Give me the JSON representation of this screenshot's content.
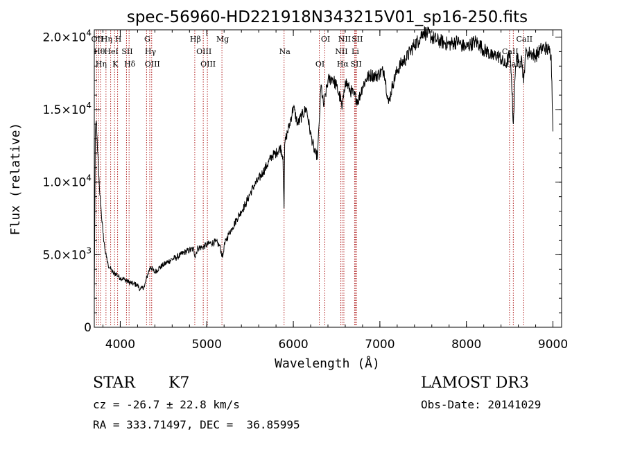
{
  "chart_data": {
    "type": "line",
    "title": "spec-56960-HD221918N343215V01_sp16-250.fits",
    "xlabel": "Wavelength (Å)",
    "ylabel": "Flux (relative)",
    "xlim": [
      3700,
      9100
    ],
    "ylim": [
      0,
      20500
    ],
    "x_ticks": [
      4000,
      5000,
      6000,
      7000,
      8000,
      9000
    ],
    "y_ticks": [
      {
        "value": 0,
        "mantissa": "0",
        "exp": ""
      },
      {
        "value": 5000,
        "mantissa": "5.0×10",
        "exp": "3"
      },
      {
        "value": 10000,
        "mantissa": "1.0×10",
        "exp": "4"
      },
      {
        "value": 15000,
        "mantissa": "1.5×10",
        "exp": "4"
      },
      {
        "value": 20000,
        "mantissa": "2.0×10",
        "exp": "4"
      }
    ],
    "series": [
      {
        "x": [
          3700,
          3712,
          3720,
          3730,
          3740,
          3750,
          3760,
          3780,
          3800,
          3820,
          3840,
          3860,
          3880,
          3900,
          3920,
          3950,
          3980,
          4000,
          4050,
          4100,
          4150,
          4200,
          4230,
          4250,
          4280,
          4300,
          4320,
          4350,
          4380,
          4400,
          4450,
          4500,
          4550,
          4600,
          4650,
          4700,
          4750,
          4800,
          4850,
          4861,
          4900,
          4950,
          5000,
          5050,
          5100,
          5150,
          5183,
          5200,
          5250,
          5300,
          5350,
          5400,
          5450,
          5500,
          5550,
          5600,
          5650,
          5700,
          5750,
          5800,
          5850,
          5880,
          5893,
          5900,
          5920,
          5950,
          6000,
          6050,
          6100,
          6150,
          6200,
          6250,
          6280,
          6300,
          6320,
          6350,
          6400,
          6450,
          6500,
          6550,
          6563,
          6580,
          6600,
          6650,
          6700,
          6750,
          6800,
          6850,
          6900,
          6950,
          7000,
          7050,
          7100,
          7150,
          7200,
          7250,
          7300,
          7350,
          7400,
          7450,
          7500,
          7550,
          7600,
          7650,
          7700,
          7750,
          7800,
          7850,
          7900,
          7950,
          8000,
          8050,
          8100,
          8150,
          8200,
          8250,
          8300,
          8350,
          8400,
          8450,
          8500,
          8520,
          8542,
          8560,
          8580,
          8600,
          8640,
          8662,
          8680,
          8700,
          8750,
          8800,
          8850,
          8900,
          8950,
          8980,
          9000
        ],
        "y": [
          2000,
          13500,
          14100,
          13300,
          12000,
          10500,
          9500,
          8000,
          6500,
          5500,
          4800,
          4300,
          4100,
          3900,
          3700,
          3700,
          3500,
          3400,
          3300,
          3100,
          3000,
          2900,
          2600,
          2700,
          2800,
          3300,
          3700,
          4200,
          3900,
          3800,
          4100,
          4300,
          4500,
          4700,
          4800,
          5000,
          5200,
          5300,
          5400,
          4900,
          5500,
          5500,
          5700,
          5800,
          5900,
          5600,
          4800,
          5600,
          6400,
          6900,
          7500,
          8000,
          8500,
          9200,
          9800,
          10200,
          10700,
          11200,
          11800,
          12000,
          12400,
          11800,
          8200,
          12600,
          13200,
          13800,
          15200,
          14000,
          14600,
          15100,
          13300,
          12000,
          11800,
          14200,
          16700,
          15200,
          17000,
          17200,
          16600,
          15600,
          15000,
          15800,
          17000,
          16400,
          16000,
          15600,
          16600,
          17200,
          17400,
          17300,
          17500,
          17700,
          15400,
          16800,
          17700,
          18200,
          18500,
          19000,
          19500,
          19800,
          20400,
          20200,
          20000,
          19800,
          19700,
          19600,
          19500,
          19600,
          19700,
          19400,
          19300,
          19500,
          19700,
          19500,
          19100,
          19000,
          18600,
          18800,
          18500,
          18000,
          18800,
          17400,
          14000,
          17000,
          18800,
          18200,
          18500,
          16800,
          18800,
          18900,
          18900,
          18700,
          19100,
          19300,
          19100,
          18800,
          13500
        ]
      }
    ],
    "lines": [
      {
        "x": 3727,
        "label": "OII"
      },
      {
        "x": 3750,
        "label": "Hθ"
      },
      {
        "x": 3771,
        "label": "Hη"
      },
      {
        "x": 3835,
        "label": "Hη"
      },
      {
        "x": 3889,
        "label": "HeI"
      },
      {
        "x": 3934,
        "label": "K"
      },
      {
        "x": 3969,
        "label": "H"
      },
      {
        "x": 4072,
        "label": "SII"
      },
      {
        "x": 4102,
        "label": "Hδ"
      },
      {
        "x": 4304,
        "label": "G"
      },
      {
        "x": 4341,
        "label": "Hγ"
      },
      {
        "x": 4363,
        "label": "OIII"
      },
      {
        "x": 4861,
        "label": "Hβ"
      },
      {
        "x": 4959,
        "label": "OIII"
      },
      {
        "x": 5007,
        "label": "OIII"
      },
      {
        "x": 5175,
        "label": "Mg"
      },
      {
        "x": 5893,
        "label": "Na"
      },
      {
        "x": 6300,
        "label": "OI"
      },
      {
        "x": 6364,
        "label": "OI"
      },
      {
        "x": 6548,
        "label": "NII"
      },
      {
        "x": 6563,
        "label": "Hα"
      },
      {
        "x": 6584,
        "label": "NII"
      },
      {
        "x": 6708,
        "label": "Li"
      },
      {
        "x": 6717,
        "label": "SII"
      },
      {
        "x": 6731,
        "label": "SII"
      },
      {
        "x": 8498,
        "label": "CaII"
      },
      {
        "x": 8542,
        "label": "CaII"
      },
      {
        "x": 8662,
        "label": "CaII"
      }
    ],
    "grid": false,
    "colors": {
      "spectrum": "#000000",
      "lines": "#b22222"
    }
  },
  "info": {
    "obj_class": "STAR",
    "subclass": "K7",
    "survey": "LAMOST DR3",
    "redshift": "cz = -26.7 ± 22.8 km/s",
    "obsdate": "Obs-Date: 20141029",
    "coords": "RA = 333.71497, DEC =  36.85995"
  }
}
